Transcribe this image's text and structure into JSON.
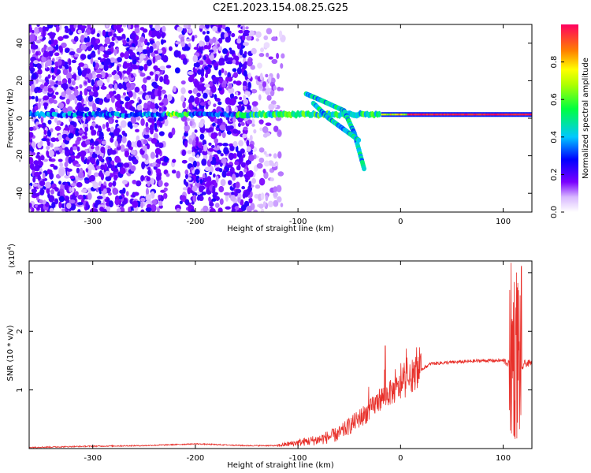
{
  "figure": {
    "title": "C2E1.2023.154.08.25.G25"
  },
  "chart_data": [
    {
      "type": "heatmap",
      "title": "C2E1.2023.154.08.25.G25",
      "xlabel": "Height of straight line (km)",
      "ylabel": "Frequency (Hz)",
      "xlim": [
        -362,
        128
      ],
      "ylim": [
        -50,
        50
      ],
      "xticks": [
        -300,
        -200,
        -100,
        0,
        100
      ],
      "xtick_labels": [
        "-300",
        "-200",
        "-100",
        "0",
        "100"
      ],
      "yticks": [
        -40,
        -20,
        0,
        20,
        40
      ],
      "ytick_labels": [
        "-40",
        "-20",
        "0",
        "20",
        "40"
      ],
      "colorbar": {
        "label": "Normalized spectral amplitude",
        "range": [
          0,
          1
        ],
        "ticks": [
          0.0,
          0.2,
          0.4,
          0.6,
          0.8
        ],
        "tick_labels": [
          "0.0",
          "0.2",
          "0.4",
          "0.6",
          "0.8"
        ],
        "colors": [
          "#ffffff",
          "#7a00ff",
          "#0000ff",
          "#00d0ff",
          "#00ff40",
          "#ffff00",
          "#ff8000",
          "#ff0040"
        ]
      },
      "features": {
        "carrier_band": {
          "x_range": [
            -362,
            128
          ],
          "freq_hz": 2,
          "note": "strong line near 0 Hz"
        },
        "branch_1": {
          "x": [
            -92,
            -75,
            -55,
            -45,
            -35
          ],
          "freq_hz": [
            13,
            9,
            4,
            -8,
            -28
          ]
        },
        "branch_2": {
          "x": [
            -85,
            -70,
            -55,
            -40
          ],
          "freq_hz": [
            8,
            0,
            -6,
            -12
          ]
        },
        "noise_region_x": [
          -362,
          -130
        ]
      },
      "grid": false
    },
    {
      "type": "line",
      "title": "",
      "xlabel": "Height of straight line (km)",
      "ylabel": "SNR (10 * v/v)",
      "y_multiplier_label": "(x10",
      "y_multiplier_exp": "4",
      "y_multiplier_close": ")",
      "xlim": [
        -362,
        128
      ],
      "ylim": [
        0,
        3.2
      ],
      "xticks": [
        -300,
        -200,
        -100,
        0,
        100
      ],
      "xtick_labels": [
        "-300",
        "-200",
        "-100",
        "0",
        "100"
      ],
      "yticks": [
        1,
        2,
        3
      ],
      "ytick_labels": [
        "1",
        "2",
        "3"
      ],
      "series": [
        {
          "color": "#e8302a",
          "x": [
            -362,
            -300,
            -250,
            -200,
            -150,
            -120,
            -100,
            -80,
            -60,
            -45,
            -30,
            -20,
            -10,
            0,
            10,
            20,
            30,
            50,
            80,
            100,
            105,
            110,
            115,
            120,
            128
          ],
          "y": [
            0.02,
            0.04,
            0.05,
            0.08,
            0.05,
            0.05,
            0.1,
            0.15,
            0.25,
            0.45,
            0.65,
            0.85,
            0.95,
            1.05,
            1.2,
            1.35,
            1.45,
            1.47,
            1.5,
            1.5,
            1.45,
            1.6,
            1.1,
            1.45,
            1.45
          ]
        }
      ],
      "annotations": {
        "spikes": [
          {
            "x": -15,
            "y": 1.75
          },
          {
            "x": 110,
            "y": 3.2
          },
          {
            "x": 115,
            "y": 0.1
          }
        ]
      },
      "grid": false
    }
  ]
}
